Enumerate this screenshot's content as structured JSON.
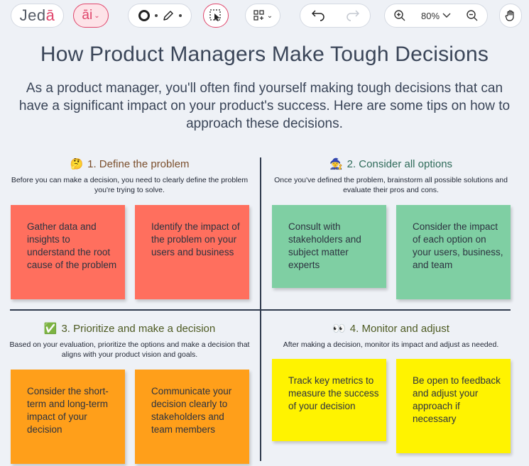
{
  "toolbar": {
    "logo_main": "Jed",
    "logo_accent": "ā",
    "ai_label": "āi",
    "zoom_level": "80%"
  },
  "header": {
    "title": "How Product Managers Make Tough Decisions",
    "subtitle": "As a product manager, you'll often find yourself making tough decisions that can have a significant impact on your product's success. Here are some tips on how to approach these decisions."
  },
  "quadrants": [
    {
      "emoji": "🤔",
      "title": "1. Define the problem",
      "description": "Before you can make a decision, you need to clearly define the problem you're trying to solve.",
      "color": "#ff6f5e",
      "notes": [
        "Gather data and insights to understand the root cause of the problem",
        "Identify the impact of the problem on your users and business"
      ]
    },
    {
      "emoji": "🧙",
      "title": "2. Consider all options",
      "description": "Once you've defined the problem, brainstorm all possible solutions and evaluate their pros and cons.",
      "color": "#7fcfa3",
      "notes": [
        "Consult with stakeholders and subject matter experts",
        "Consider the impact of each option on your users, business, and team"
      ]
    },
    {
      "emoji": "✅",
      "title": "3. Prioritize and make a decision",
      "description": "Based on your evaluation, prioritize the options and make a decision that aligns with your product vision and goals.",
      "color": "#ff9f1a",
      "notes": [
        "Consider the short-term and long-term impact of your decision",
        "Communicate your decision clearly to stakeholders and team members"
      ]
    },
    {
      "emoji": "👀",
      "title": "4. Monitor and adjust",
      "description": "After making a decision, monitor its impact and adjust as needed.",
      "color": "#fff300",
      "notes": [
        "Track key metrics to measure the success of your decision",
        "Be open to feedback and adjust your approach if necessary"
      ]
    }
  ]
}
